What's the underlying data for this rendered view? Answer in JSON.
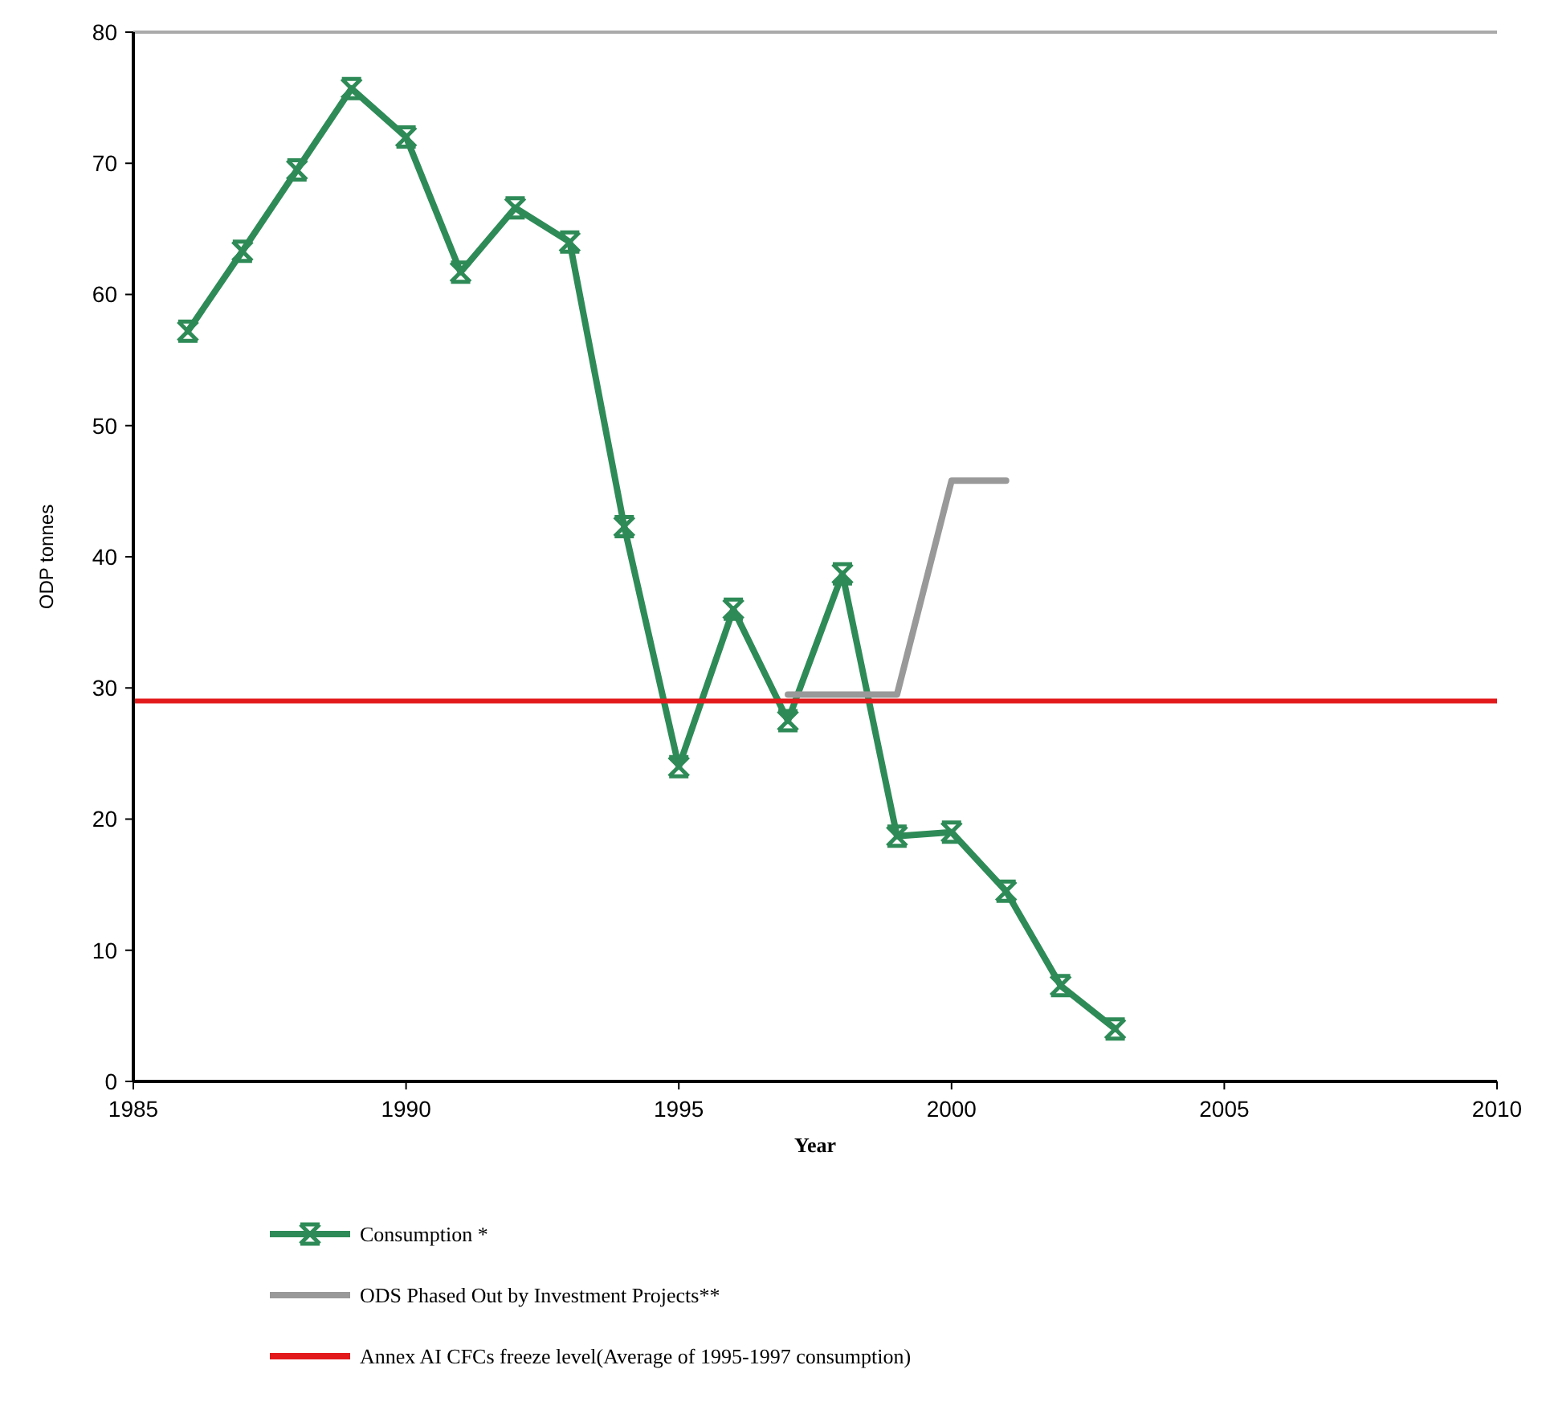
{
  "chart_data": {
    "type": "line",
    "xlabel": "Year",
    "ylabel": "ODP tonnes",
    "xlim": [
      1985,
      2010
    ],
    "xticks": [
      1985,
      1990,
      1995,
      2000,
      2005,
      2010
    ],
    "ylim": [
      0,
      80
    ],
    "yticks": [
      0,
      10,
      20,
      30,
      40,
      50,
      60,
      70,
      80
    ],
    "grid": false,
    "legend": "bottom",
    "series": [
      {
        "name": "Consumption *",
        "color": "#2e8b57",
        "marker": "cross",
        "x": [
          1986,
          1987,
          1988,
          1989,
          1990,
          1991,
          1992,
          1993,
          1994,
          1995,
          1996,
          1997,
          1998,
          1999,
          2000,
          2001,
          2002,
          2003
        ],
        "values": [
          57.2,
          63.3,
          69.5,
          75.7,
          72,
          61.7,
          66.6,
          64,
          42.3,
          24,
          36,
          27.5,
          38.7,
          18.7,
          19,
          14.5,
          7.3,
          4
        ]
      },
      {
        "name": "ODS Phased Out by Investment Projects**",
        "color": "#999999",
        "marker": "none",
        "x": [
          1997,
          1999,
          2000,
          2001
        ],
        "values": [
          29.5,
          29.5,
          45.8,
          45.8
        ]
      }
    ],
    "ref_lines": [
      {
        "axis": "y",
        "value": 29,
        "label": "Annex AI CFCs freeze level(Average of 1995-1997 consumption)",
        "color": "#e31a1c"
      }
    ]
  }
}
